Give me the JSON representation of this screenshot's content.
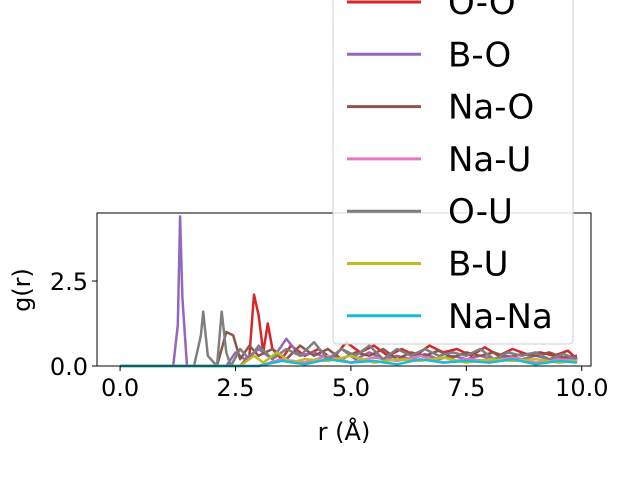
{
  "chart_data": {
    "type": "line",
    "xlabel": "r (Å)",
    "ylabel": "g(r)",
    "xlim": [
      -0.5,
      10.2
    ],
    "ylim": [
      0,
      4.5
    ],
    "xticks": [
      "0.0",
      "2.5",
      "5.0",
      "7.5",
      "10.0"
    ],
    "yticks": [
      "0.0",
      "2.5"
    ],
    "legend_position": "top-right",
    "series": [
      {
        "name": "O-O",
        "color": "#d62728",
        "x": [
          0,
          2.6,
          2.8,
          2.9,
          3.0,
          3.1,
          3.2,
          3.3,
          3.5,
          3.7,
          4.0,
          4.3,
          4.6,
          4.9,
          5.2,
          5.5,
          5.8,
          6.1,
          6.4,
          6.7,
          7.0,
          7.3,
          7.6,
          7.9,
          8.2,
          8.5,
          8.8,
          9.1,
          9.4,
          9.7,
          9.9
        ],
        "y": [
          0,
          0,
          0.3,
          2.1,
          1.5,
          0.4,
          1.25,
          0.5,
          0.2,
          0.6,
          0.3,
          0.5,
          0.2,
          0.7,
          0.4,
          0.6,
          0.3,
          0.5,
          0.3,
          0.6,
          0.4,
          0.5,
          0.3,
          0.55,
          0.3,
          0.5,
          0.35,
          0.4,
          0.3,
          0.45,
          0.2
        ]
      },
      {
        "name": "B-O",
        "color": "#9467bd",
        "x": [
          0,
          1.15,
          1.25,
          1.3,
          1.35,
          1.45,
          2.3,
          2.5,
          2.7,
          3.0,
          3.3,
          3.6,
          3.9,
          4.2,
          4.5,
          4.8,
          5.1,
          5.4,
          5.7,
          6.0,
          6.3,
          6.6,
          6.9,
          7.2,
          7.5,
          7.8,
          8.1,
          8.4,
          8.7,
          9.0,
          9.3,
          9.6,
          9.9
        ],
        "y": [
          0,
          0,
          1.2,
          4.4,
          2.0,
          0,
          0,
          0.4,
          0.2,
          0.5,
          0.2,
          0.8,
          0.3,
          0.4,
          0.2,
          0.5,
          0.2,
          0.4,
          0.2,
          0.3,
          0.2,
          0.35,
          0.2,
          0.3,
          0.2,
          0.3,
          0.2,
          0.3,
          0.2,
          0.3,
          0.2,
          0.25,
          0.2
        ]
      },
      {
        "name": "Na-O",
        "color": "#8c564b",
        "x": [
          0,
          2.1,
          2.3,
          2.45,
          2.6,
          2.8,
          3.0,
          3.3,
          3.6,
          3.9,
          4.2,
          4.5,
          4.8,
          5.1,
          5.4,
          5.7,
          6.0,
          6.3,
          6.6,
          6.9,
          7.2,
          7.5,
          7.8,
          8.1,
          8.4,
          8.7,
          9.0,
          9.3,
          9.6,
          9.9
        ],
        "y": [
          0,
          0,
          1.0,
          0.9,
          0.2,
          0.6,
          0.3,
          0.5,
          0.2,
          0.6,
          0.3,
          0.5,
          0.2,
          0.4,
          0.3,
          0.5,
          0.2,
          0.4,
          0.3,
          0.45,
          0.25,
          0.4,
          0.3,
          0.4,
          0.25,
          0.35,
          0.3,
          0.4,
          0.25,
          0.3
        ]
      },
      {
        "name": "Na-U",
        "color": "#e377c2",
        "x": [
          0,
          3.0,
          3.5,
          4.0,
          4.5,
          5.0,
          5.5,
          6.0,
          6.5,
          7.0,
          7.5,
          8.0,
          8.5,
          9.0,
          9.5,
          9.9
        ],
        "y": [
          0,
          0,
          0.2,
          0.1,
          0.3,
          0.1,
          0.25,
          0.15,
          0.3,
          0.1,
          0.2,
          0.15,
          0.25,
          0.1,
          0.2,
          0.15
        ]
      },
      {
        "name": "O-U",
        "color": "#7f7f7f",
        "x": [
          0,
          1.6,
          1.75,
          1.8,
          1.9,
          2.1,
          2.2,
          2.3,
          2.4,
          2.6,
          2.8,
          3.0,
          3.3,
          3.6,
          3.9,
          4.2,
          4.5,
          4.8,
          5.1,
          5.4,
          5.7,
          6.0,
          6.3,
          6.6,
          6.9,
          7.2,
          7.5,
          7.8,
          8.1,
          8.4,
          8.7,
          9.0,
          9.3,
          9.6,
          9.9
        ],
        "y": [
          0,
          0,
          0.9,
          1.6,
          0.3,
          0,
          1.6,
          0.4,
          0,
          0.5,
          0.2,
          0.6,
          0.2,
          0.5,
          0.3,
          0.7,
          0.2,
          0.5,
          0.3,
          0.6,
          0.2,
          0.5,
          0.3,
          0.5,
          0.3,
          0.4,
          0.3,
          0.5,
          0.2,
          0.4,
          0.3,
          0.4,
          0.2,
          0.35,
          0.2
        ]
      },
      {
        "name": "B-U",
        "color": "#bcbd22",
        "x": [
          0,
          2.6,
          2.9,
          3.1,
          3.4,
          3.7,
          4.0,
          4.5,
          5.0,
          5.5,
          6.0,
          6.5,
          7.0,
          7.5,
          8.0,
          8.5,
          9.0,
          9.5,
          9.9
        ],
        "y": [
          0,
          0,
          0.3,
          0.1,
          0.4,
          0.1,
          0.2,
          0.15,
          0.3,
          0.1,
          0.2,
          0.15,
          0.25,
          0.1,
          0.2,
          0.15,
          0.2,
          0.1,
          0.15
        ]
      },
      {
        "name": "Na-Na",
        "color": "#17becf",
        "x": [
          0,
          3.0,
          3.5,
          4.0,
          4.5,
          5.0,
          5.5,
          6.0,
          6.5,
          7.0,
          7.5,
          8.0,
          8.5,
          9.0,
          9.5,
          9.9
        ],
        "y": [
          0,
          0,
          0.15,
          0.05,
          0.2,
          0.1,
          0.15,
          0.05,
          0.2,
          0.1,
          0.15,
          0.1,
          0.2,
          0.05,
          0.15,
          0.1
        ]
      }
    ]
  }
}
